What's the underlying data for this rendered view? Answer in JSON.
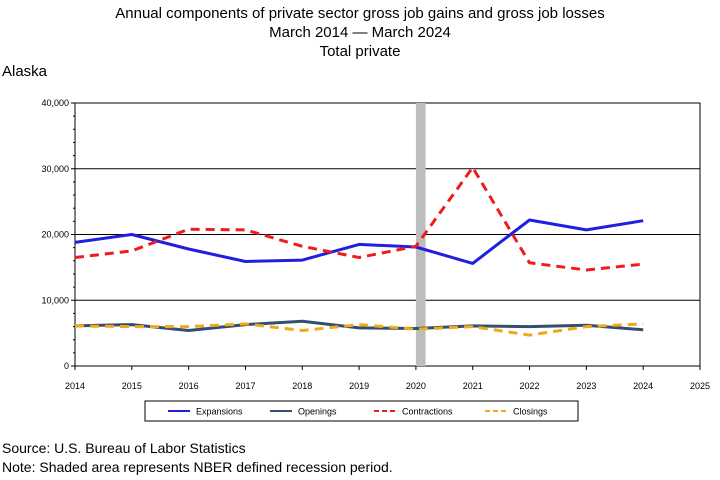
{
  "header": {
    "title_line1": "Annual components of private sector gross job gains and gross job losses",
    "title_line2": "March 2014 — March 2024",
    "title_line3": "Total private",
    "region": "Alaska"
  },
  "footer": {
    "source": "Source: U.S. Bureau of Labor Statistics",
    "note": "Note: Shaded area represents NBER defined recession period."
  },
  "chart_data": {
    "type": "line",
    "x": [
      2014,
      2015,
      2016,
      2017,
      2018,
      2019,
      2020,
      2021,
      2022,
      2023,
      2024
    ],
    "xlim": [
      2014,
      2025
    ],
    "xticks": [
      2014,
      2015,
      2016,
      2017,
      2018,
      2019,
      2020,
      2021,
      2022,
      2023,
      2024,
      2025
    ],
    "ylim": [
      0,
      40000
    ],
    "yticks": [
      0,
      10000,
      20000,
      30000,
      40000
    ],
    "ytick_labels": [
      "0",
      "10,000",
      "20,000",
      "30,000",
      "40,000"
    ],
    "grid": "horizontal",
    "legend_position": "bottom",
    "recession": {
      "start": 2020.0,
      "end": 2020.17
    },
    "series": [
      {
        "name": "Expansions",
        "color": "#1f1fe0",
        "style": "solid",
        "width": 3,
        "values": [
          18800,
          20000,
          17800,
          15900,
          16100,
          18500,
          18100,
          15600,
          22200,
          20700,
          22100
        ]
      },
      {
        "name": "Openings",
        "color": "#334e73",
        "style": "solid",
        "width": 3,
        "values": [
          6100,
          6300,
          5400,
          6300,
          6800,
          5800,
          5700,
          6100,
          6000,
          6200,
          5500
        ]
      },
      {
        "name": "Contractions",
        "color": "#ee1c1c",
        "style": "dashed",
        "width": 3,
        "values": [
          16500,
          17500,
          20800,
          20700,
          18200,
          16500,
          18200,
          30200,
          15700,
          14600,
          15500
        ]
      },
      {
        "name": "Closings",
        "color": "#f0a91b",
        "style": "dashed",
        "width": 3,
        "values": [
          6100,
          6000,
          6000,
          6400,
          5400,
          6300,
          5600,
          6000,
          4700,
          6000,
          6400
        ]
      }
    ]
  }
}
